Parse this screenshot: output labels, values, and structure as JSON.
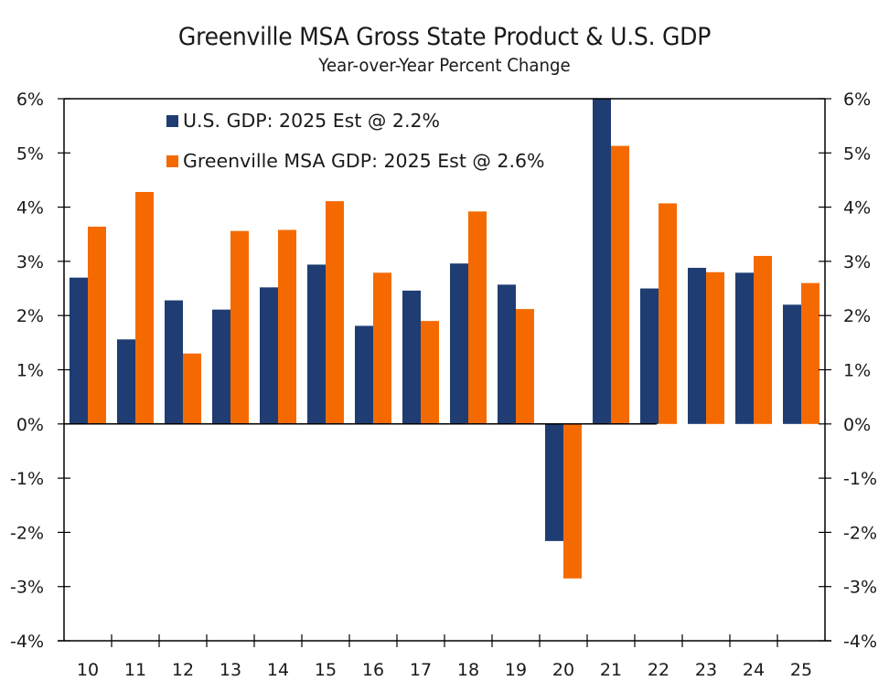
{
  "chart_data": {
    "type": "bar",
    "title": "Greenville MSA Gross State Product & U.S. GDP",
    "subtitle": "Year-over-Year Percent Change",
    "xlabel": "",
    "ylabel": "",
    "categories": [
      "10",
      "11",
      "12",
      "13",
      "14",
      "15",
      "16",
      "17",
      "18",
      "19",
      "20",
      "21",
      "22",
      "23",
      "24",
      "25"
    ],
    "series": [
      {
        "name": "U.S. GDP: 2025 Est @ 2.2%",
        "color": "#1f3d73",
        "values": [
          2.7,
          1.56,
          2.28,
          2.11,
          2.52,
          2.94,
          1.81,
          2.46,
          2.96,
          2.57,
          -2.16,
          6.0,
          2.5,
          2.88,
          2.79,
          2.2
        ]
      },
      {
        "name": "Greenville MSA GDP: 2025 Est @ 2.6%",
        "color": "#f56a00",
        "values": [
          3.64,
          4.28,
          1.3,
          3.56,
          3.58,
          4.11,
          2.79,
          1.9,
          3.92,
          2.12,
          -2.85,
          5.13,
          4.07,
          2.8,
          3.1,
          2.6
        ]
      }
    ],
    "ylim": [
      -4,
      6
    ],
    "yticks": [
      6,
      5,
      4,
      3,
      2,
      1,
      0,
      -1,
      -2,
      -3,
      -4
    ],
    "ytick_labels": [
      "6%",
      "5%",
      "4%",
      "3%",
      "2%",
      "1%",
      "0%",
      "-1%",
      "-2%",
      "-3%",
      "-4%"
    ],
    "y_axes": "left-and-right",
    "grid": false,
    "legend": "top-left-inside"
  }
}
